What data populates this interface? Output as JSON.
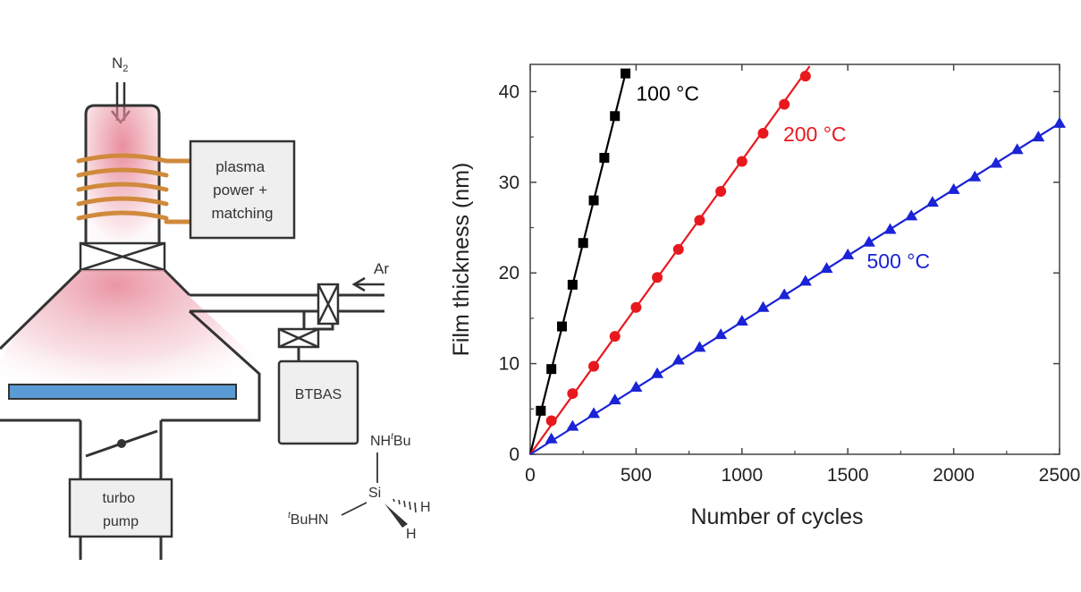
{
  "diagram": {
    "gas_in": "N",
    "gas_in_sub": "2",
    "plasma_label": [
      "plasma",
      "power +",
      "matching"
    ],
    "carrier_gas": "Ar",
    "precursor_label": "BTBAS",
    "pump_label": [
      "turbo",
      "pump"
    ],
    "molecule": {
      "top_group": "NH",
      "top_group_sup": "t",
      "top_group_suffix": "Bu",
      "center": "Si",
      "left_group_sup": "t",
      "left_group": "BuHN",
      "h_right": "H",
      "h_bottom": "H"
    },
    "colors": {
      "plasma": "#e8899a",
      "substrate": "#5b9bd5",
      "coil": "#d08a3c",
      "outline": "#333333",
      "box_fill": "#efefef"
    }
  },
  "chart_data": {
    "type": "scatter",
    "xlabel": "Number of cycles",
    "ylabel": "Film thickness (nm)",
    "xlim": [
      0,
      2500
    ],
    "ylim": [
      0,
      43
    ],
    "xticks": [
      0,
      500,
      1000,
      1500,
      2000,
      2500
    ],
    "yticks": [
      0,
      10,
      20,
      30,
      40
    ],
    "xtick_labels": [
      "0",
      "500",
      "1000",
      "1500",
      "2000",
      "2500"
    ],
    "ytick_labels": [
      "0",
      "10",
      "20",
      "30",
      "40"
    ],
    "grid": false,
    "series": [
      {
        "name": "100 °C",
        "color": "#000000",
        "marker": "square",
        "x": [
          50,
          100,
          150,
          200,
          250,
          300,
          350,
          400,
          450
        ],
        "y": [
          4.8,
          9.4,
          14.1,
          18.7,
          23.3,
          28.0,
          32.7,
          37.3,
          42.0
        ],
        "fit": [
          [
            0,
            0
          ],
          [
            450,
            42.0
          ]
        ]
      },
      {
        "name": "200 °C",
        "color": "#e8191e",
        "marker": "circle",
        "x": [
          100,
          200,
          300,
          400,
          500,
          600,
          700,
          800,
          900,
          1000,
          1100,
          1200,
          1300
        ],
        "y": [
          3.7,
          6.7,
          9.7,
          13.0,
          16.2,
          19.5,
          22.6,
          25.8,
          29.0,
          32.3,
          35.4,
          38.6,
          41.7
        ],
        "fit": [
          [
            0,
            0
          ],
          [
            1320,
            42.8
          ]
        ]
      },
      {
        "name": "500 °C",
        "color": "#1a23d6",
        "marker": "triangle",
        "x": [
          100,
          200,
          300,
          400,
          500,
          600,
          700,
          800,
          900,
          1000,
          1100,
          1200,
          1300,
          1400,
          1500,
          1600,
          1700,
          1800,
          1900,
          2000,
          2100,
          2200,
          2300,
          2400,
          2500
        ],
        "y": [
          1.7,
          3.1,
          4.5,
          6.0,
          7.4,
          8.9,
          10.4,
          11.8,
          13.2,
          14.7,
          16.2,
          17.6,
          19.1,
          20.5,
          22.0,
          23.4,
          24.8,
          26.3,
          27.8,
          29.2,
          30.6,
          32.1,
          33.6,
          35.0,
          36.5
        ],
        "fit": [
          [
            0,
            0
          ],
          [
            2500,
            36.5
          ]
        ]
      }
    ],
    "annotations": [
      {
        "text": "100 °C",
        "x": 500,
        "y": 39,
        "color": "#000000"
      },
      {
        "text": "200 °C",
        "x": 1195,
        "y": 34.5,
        "color": "#e8191e"
      },
      {
        "text": "500 °C",
        "x": 1590,
        "y": 20.5,
        "color": "#1a23d6"
      }
    ]
  }
}
